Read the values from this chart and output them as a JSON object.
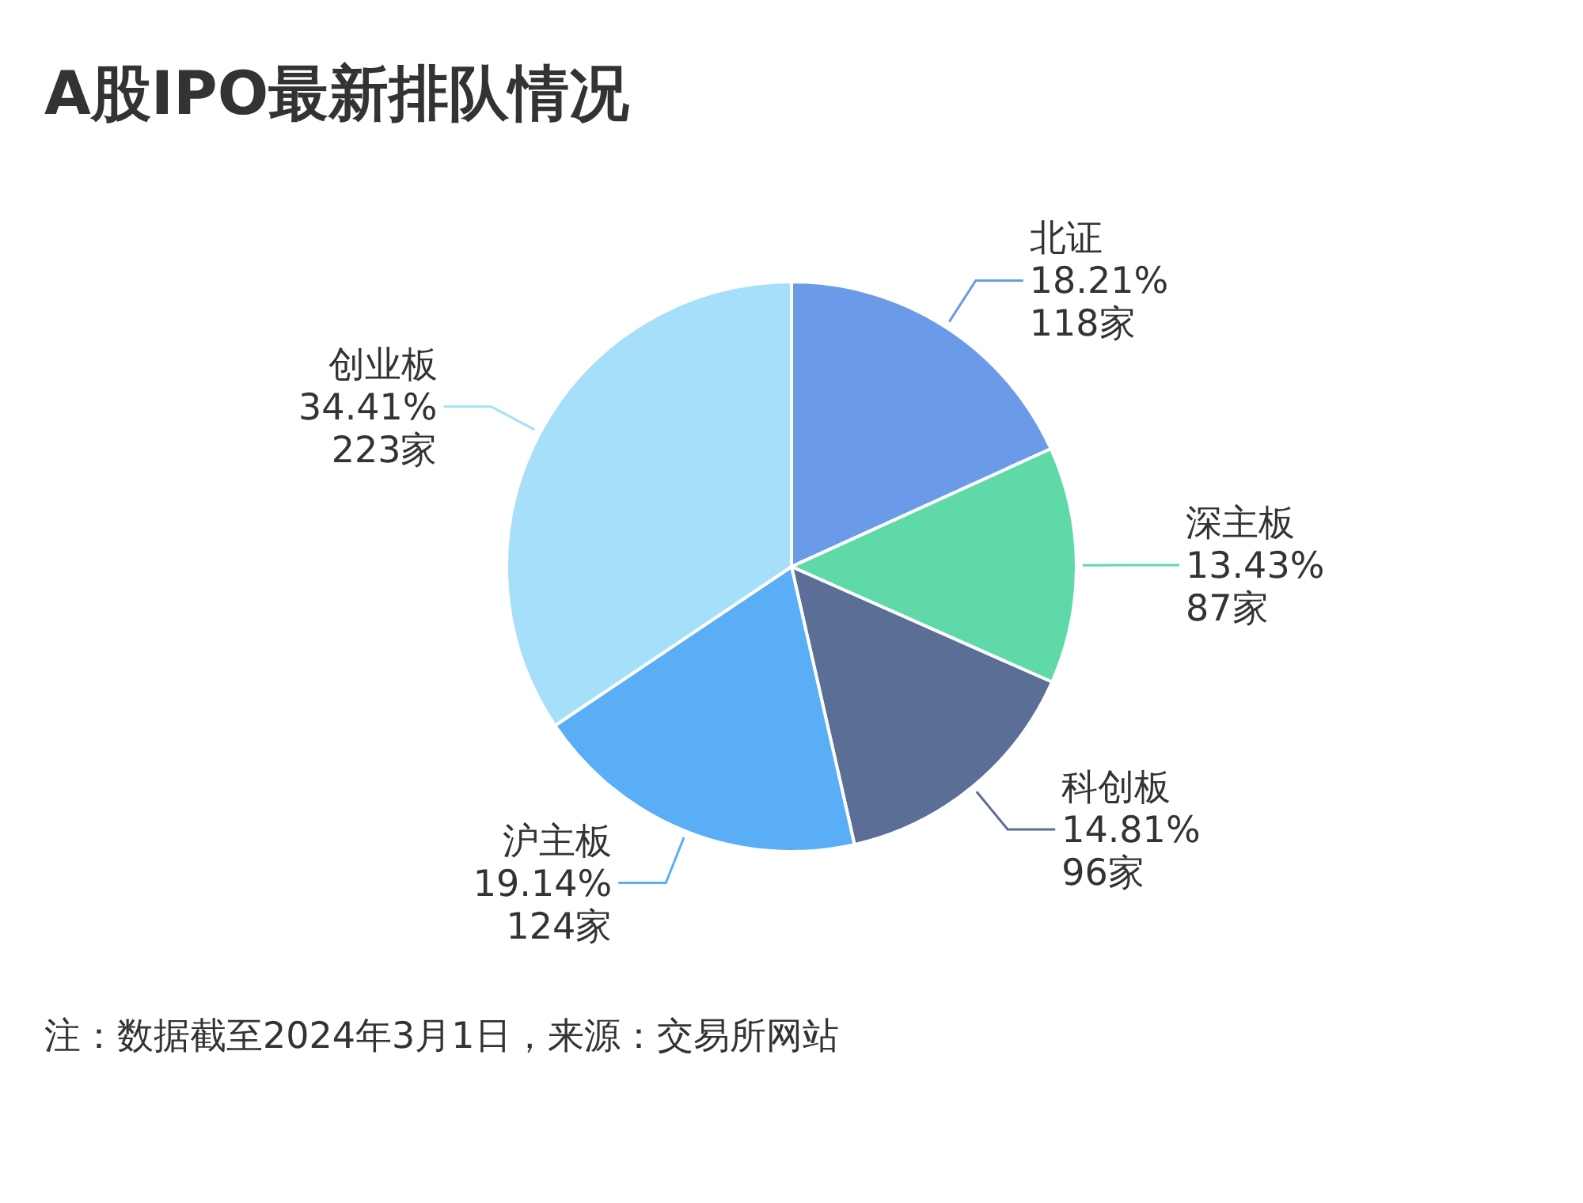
{
  "chart_data": {
    "type": "pie",
    "title": "A股IPO最新排队情况",
    "categories": [
      "北证",
      "深主板",
      "科创板",
      "沪主板",
      "创业板"
    ],
    "values": [
      118,
      87,
      96,
      124,
      223
    ],
    "colors": [
      "#6b9be8",
      "#5fd9a8",
      "#5b6e96",
      "#5aaef5",
      "#a6dff9"
    ],
    "value_labels": [
      "18.21%\n118家",
      "13.43%\n87家",
      "14.81%\n96家",
      "19.14%\n124家",
      "34.41%\n223家"
    ],
    "annotations": [
      "注：数据截至2024年3月1日，来源：交易所网站"
    ]
  }
}
